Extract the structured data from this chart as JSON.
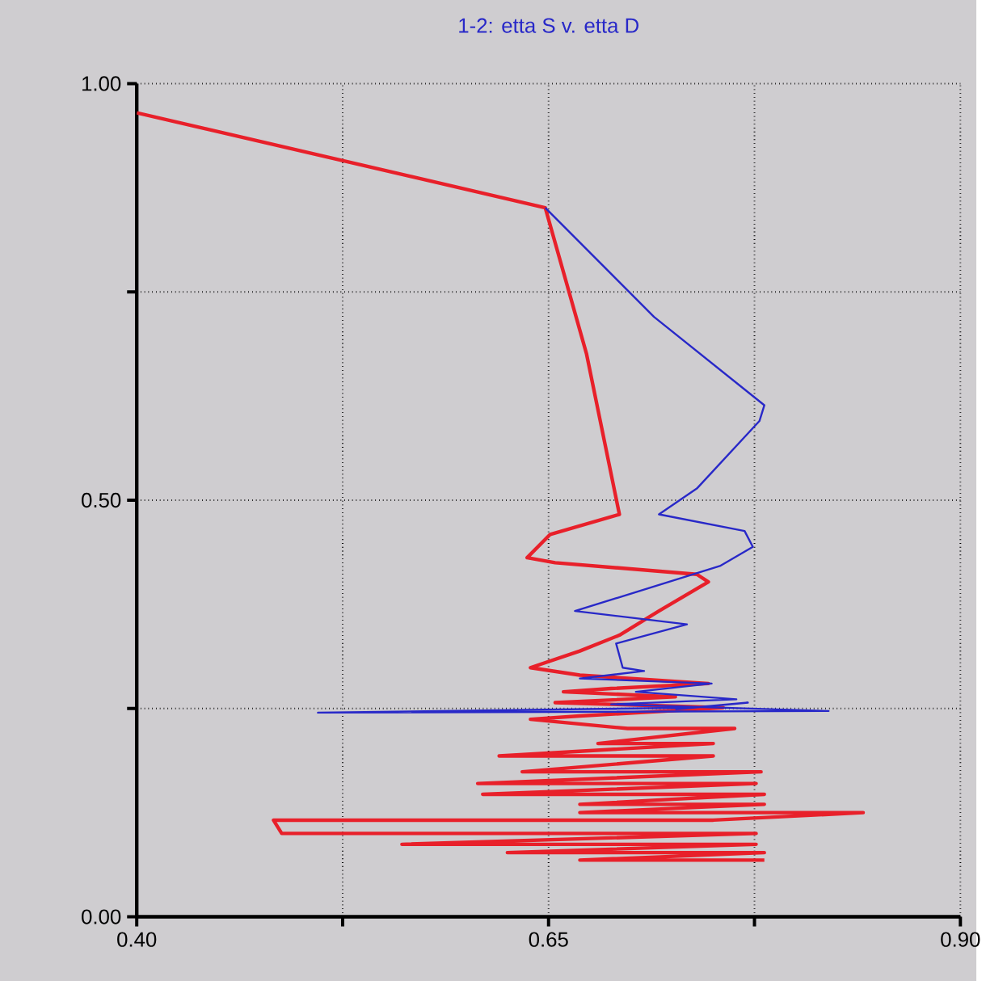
{
  "chart_data": {
    "type": "line",
    "title": "1-2: etta S v. etta D",
    "xlim": [
      0.4,
      0.9
    ],
    "ylim": [
      0,
      1
    ],
    "xticks": [
      {
        "value": 0.4,
        "label": "0.40"
      },
      {
        "value": 0.525,
        "label": null
      },
      {
        "value": 0.65,
        "label": "0.65"
      },
      {
        "value": 0.775,
        "label": null
      },
      {
        "value": 0.9,
        "label": "0.90"
      }
    ],
    "yticks": [
      {
        "value": 0,
        "label": "0.00"
      },
      {
        "value": 0.25,
        "label": null
      },
      {
        "value": 0.5,
        "label": "0.50"
      },
      {
        "value": 0.75,
        "label": null
      },
      {
        "value": 1,
        "label": "1.00"
      }
    ],
    "grid": true,
    "series": [
      {
        "color": "#e8202a",
        "x": [
          0.4,
          0.648,
          0.673,
          0.693,
          0.651,
          0.637,
          0.654,
          0.74,
          0.747,
          0.717,
          0.693,
          0.669,
          0.639,
          0.669,
          0.747,
          0.688,
          0.659,
          0.727,
          0.654,
          0.756,
          0.669,
          0.639,
          0.698,
          0.763,
          0.68,
          0.75,
          0.62,
          0.75,
          0.634,
          0.779,
          0.607,
          0.776,
          0.61,
          0.781,
          0.669,
          0.781,
          0.669,
          0.841,
          0.75,
          0.483,
          0.488,
          0.776,
          0.561,
          0.776,
          0.625,
          0.781,
          0.669,
          0.781
        ],
        "values": [
          0.965,
          0.851,
          0.676,
          0.483,
          0.459,
          0.431,
          0.425,
          0.411,
          0.402,
          0.367,
          0.338,
          0.319,
          0.299,
          0.29,
          0.28,
          0.274,
          0.27,
          0.264,
          0.257,
          0.251,
          0.241,
          0.237,
          0.226,
          0.226,
          0.208,
          0.208,
          0.193,
          0.193,
          0.174,
          0.174,
          0.16,
          0.16,
          0.147,
          0.147,
          0.135,
          0.135,
          0.125,
          0.125,
          0.116,
          0.116,
          0.1,
          0.1,
          0.087,
          0.087,
          0.077,
          0.077,
          0.068,
          0.068
        ]
      },
      {
        "color": "#2828c8",
        "x": [
          0.648,
          0.714,
          0.781,
          0.778,
          0.74,
          0.717,
          0.769,
          0.774,
          0.754,
          0.666,
          0.734,
          0.691,
          0.695,
          0.708,
          0.669,
          0.749,
          0.703,
          0.764,
          0.688,
          0.82,
          0.51,
          0.737,
          0.771,
          0.727
        ],
        "values": [
          0.851,
          0.72,
          0.614,
          0.595,
          0.514,
          0.483,
          0.463,
          0.444,
          0.421,
          0.367,
          0.351,
          0.328,
          0.299,
          0.295,
          0.286,
          0.28,
          0.27,
          0.261,
          0.255,
          0.247,
          0.245,
          0.251,
          0.257,
          0.249
        ]
      }
    ]
  }
}
